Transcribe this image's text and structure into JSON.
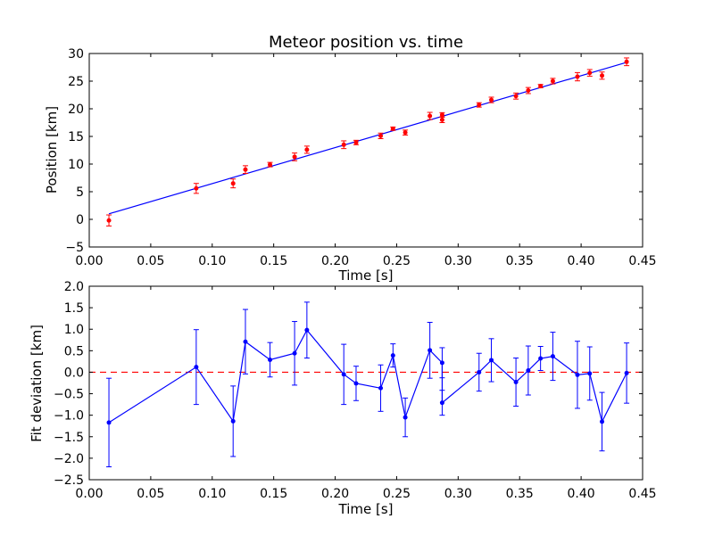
{
  "chart_data": [
    {
      "type": "scatter",
      "title": "Meteor position vs. time",
      "xlabel": "Time [s]",
      "ylabel": "Position [km]",
      "xlim": [
        0.0,
        0.45
      ],
      "ylim": [
        -5,
        30
      ],
      "xticks": [
        "0.00",
        "0.05",
        "0.10",
        "0.15",
        "0.20",
        "0.25",
        "0.30",
        "0.35",
        "0.40",
        "0.45"
      ],
      "yticks": [
        "−5",
        "0",
        "5",
        "10",
        "15",
        "20",
        "25",
        "30"
      ],
      "grid": false,
      "colors": {
        "points": "#ff0000",
        "fit": "#0000ff"
      },
      "measurements": {
        "x": [
          0.016,
          0.087,
          0.117,
          0.127,
          0.147,
          0.167,
          0.177,
          0.207,
          0.217,
          0.237,
          0.247,
          0.257,
          0.277,
          0.287,
          0.287,
          0.317,
          0.327,
          0.347,
          0.357,
          0.367,
          0.377,
          0.397,
          0.407,
          0.417,
          0.437
        ],
        "y": [
          -0.2,
          5.6,
          6.5,
          9.0,
          9.9,
          11.3,
          12.6,
          13.5,
          13.9,
          15.1,
          16.4,
          15.7,
          18.7,
          18.0,
          18.9,
          20.7,
          21.6,
          22.3,
          23.3,
          24.1,
          25.0,
          25.8,
          26.5,
          26.0,
          28.5
        ],
        "err": [
          1.0,
          0.9,
          0.8,
          0.7,
          0.4,
          0.7,
          0.65,
          0.7,
          0.4,
          0.5,
          0.3,
          0.45,
          0.65,
          0.5,
          0.4,
          0.4,
          0.5,
          0.55,
          0.55,
          0.3,
          0.5,
          0.75,
          0.6,
          0.65,
          0.7
        ]
      },
      "fit_line": {
        "x": [
          0.016,
          0.437
        ],
        "y": [
          1.0,
          28.4
        ]
      }
    },
    {
      "type": "line",
      "title": "",
      "xlabel": "Time [s]",
      "ylabel": "Fit deviation [km]",
      "xlim": [
        0.0,
        0.45
      ],
      "ylim": [
        -2.5,
        2.0
      ],
      "xticks": [
        "0.00",
        "0.05",
        "0.10",
        "0.15",
        "0.20",
        "0.25",
        "0.30",
        "0.35",
        "0.40",
        "0.45"
      ],
      "yticks": [
        "−2.5",
        "−2.0",
        "−1.5",
        "−1.0",
        "−0.5",
        "0.0",
        "0.5",
        "1.0",
        "1.5",
        "2.0"
      ],
      "grid": false,
      "colors": {
        "series": "#0000ff",
        "zero_line": "#ff0000"
      },
      "deviation": {
        "x": [
          0.016,
          0.087,
          0.117,
          0.127,
          0.147,
          0.167,
          0.177,
          0.207,
          0.217,
          0.237,
          0.247,
          0.257,
          0.277,
          0.287,
          0.287,
          0.317,
          0.327,
          0.347,
          0.357,
          0.367,
          0.377,
          0.397,
          0.407,
          0.417,
          0.437
        ],
        "y": [
          -1.17,
          0.12,
          -1.14,
          0.71,
          0.29,
          0.44,
          0.98,
          -0.05,
          -0.26,
          -0.37,
          0.39,
          -1.05,
          0.51,
          0.22,
          -0.71,
          0.0,
          0.28,
          -0.23,
          0.04,
          0.32,
          0.37,
          -0.06,
          -0.03,
          -1.15,
          -0.02
        ],
        "err": [
          1.03,
          0.87,
          0.82,
          0.75,
          0.4,
          0.74,
          0.65,
          0.7,
          0.4,
          0.54,
          0.27,
          0.45,
          0.65,
          0.35,
          0.29,
          0.44,
          0.5,
          0.56,
          0.57,
          0.28,
          0.56,
          0.78,
          0.62,
          0.68,
          0.7
        ]
      },
      "zero_line": 0.0
    }
  ]
}
